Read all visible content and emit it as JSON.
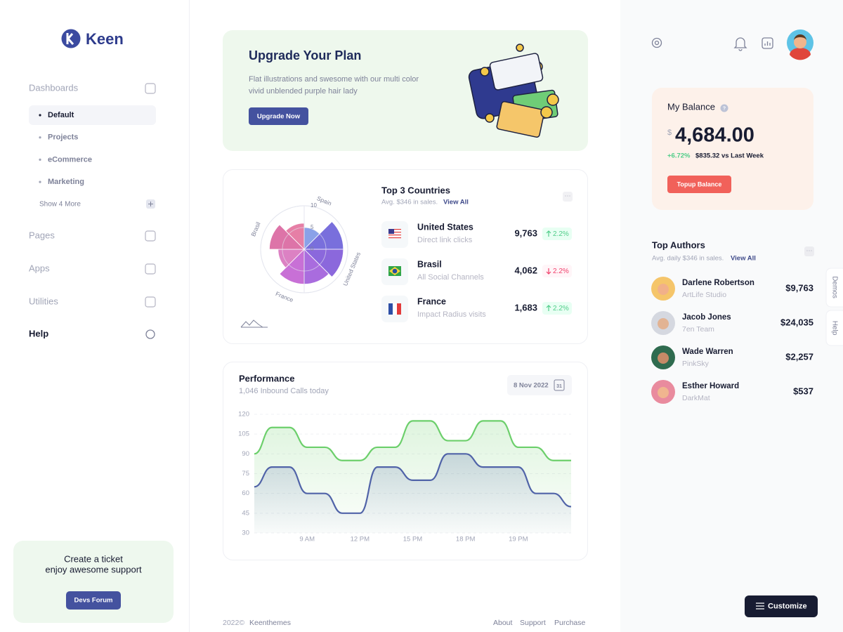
{
  "sidebar": {
    "brand": "Keen",
    "sections": [
      {
        "label": "Dashboards",
        "items": [
          "Default",
          "Projects",
          "eCommerce",
          "Marketing"
        ],
        "more": "Show 4 More"
      },
      {
        "label": "Pages"
      },
      {
        "label": "Apps"
      },
      {
        "label": "Utilities"
      },
      {
        "label": "Help"
      }
    ]
  },
  "support": {
    "lines": [
      "Create a ticket",
      "enjoy awesome support"
    ],
    "button": "Devs Forum"
  },
  "upgrade": {
    "title": "Upgrade Your Plan",
    "text_lines": [
      "Flat illustrations and swesome with our multi color",
      "vivid unblended purple hair lady"
    ],
    "button": "Upgrade Now"
  },
  "countries": {
    "title": "Top 3 Countries",
    "subtitle": "Avg. $346 in sales.",
    "link": "View All",
    "rows": [
      {
        "name": "United States",
        "source": "Direct link clicks",
        "value": "9,763",
        "change": "2.2%",
        "trend": "up"
      },
      {
        "name": "Brasil",
        "source": "All Social Channels",
        "value": "4,062",
        "change": "2.2%",
        "trend": "down"
      },
      {
        "name": "France",
        "source": "Impact Radius visits",
        "value": "1,683",
        "change": "2.2%",
        "trend": "up"
      }
    ]
  },
  "performance": {
    "title": "Performance",
    "subtitle": "1,046 Inbound Calls today",
    "date": "8 Nov 2022",
    "calendar": "31"
  },
  "chart_data": [
    {
      "type": "polar",
      "categories": [
        "Spain",
        null,
        "United States",
        null,
        "France",
        null,
        "Brasil",
        null
      ],
      "values": [
        5,
        9,
        9,
        8,
        8,
        6,
        8,
        6
      ],
      "colors": [
        "#7d97e6",
        "#6a5fd8",
        "#7e58d8",
        "#a05cda",
        "#c260d2",
        "#d873bd",
        "#d9659f",
        "#e3719c"
      ],
      "rlim": [
        0,
        10
      ],
      "rticks": [
        0,
        5,
        10
      ]
    },
    {
      "type": "line",
      "categories": [
        null,
        null,
        null,
        "9 AM",
        null,
        null,
        "12 PM",
        null,
        null,
        "15 PM",
        null,
        null,
        "18 PM",
        null,
        null,
        "19 PM",
        null,
        null,
        null
      ],
      "series": [
        {
          "color": "#6ccf6b",
          "values": [
            90,
            110,
            110,
            95,
            95,
            85,
            85,
            95,
            95,
            115,
            115,
            100,
            100,
            115,
            115,
            95,
            95,
            85,
            85
          ]
        },
        {
          "color": "#5063a8",
          "values": [
            65,
            80,
            80,
            60,
            60,
            45,
            45,
            80,
            80,
            70,
            70,
            90,
            90,
            80,
            80,
            80,
            60,
            60,
            50
          ]
        }
      ],
      "ylim": [
        30,
        120
      ],
      "yticks": [
        30,
        45,
        60,
        75,
        90,
        105,
        120
      ],
      "grid": true
    }
  ],
  "balance": {
    "title": "My Balance",
    "help": "?",
    "currency": "$",
    "amount": "4,684.00",
    "change": "+6.72%",
    "comparison": "$835.32 vs Last Week",
    "button": "Topup Balance"
  },
  "authors": {
    "title": "Top Authors",
    "subtitle": "Avg. daily $346 in sales.",
    "link": "View All",
    "rows": [
      {
        "name": "Darlene Robertson",
        "company": "ArtLife Studio",
        "amount": "$9,763"
      },
      {
        "name": "Jacob Jones",
        "company": "7en Team",
        "amount": "$24,035"
      },
      {
        "name": "Wade Warren",
        "company": "PinkSky",
        "amount": "$2,257"
      },
      {
        "name": "Esther Howard",
        "company": "DarkMat",
        "amount": "$537"
      }
    ]
  },
  "side_tabs": [
    "Demos",
    "Help"
  ],
  "customize": "Customize",
  "footer": {
    "copyright": "2022©",
    "company": "Keenthemes",
    "links": [
      "About",
      "Support",
      "Purchase"
    ]
  }
}
